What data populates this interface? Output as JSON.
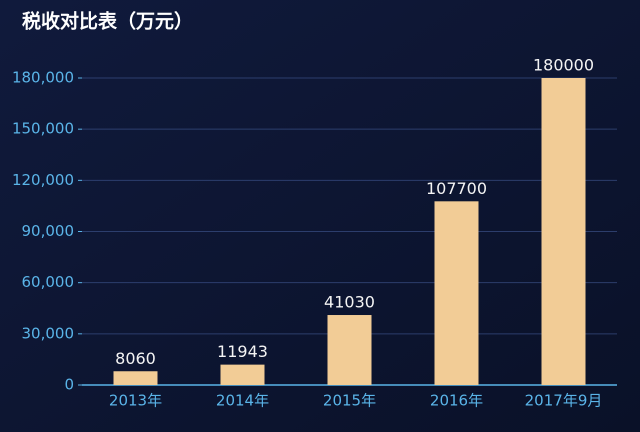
{
  "chart_data": {
    "type": "bar",
    "title": "税收对比表（万元）",
    "categories": [
      "2013年",
      "2014年",
      "2015年",
      "2016年",
      "2017年9月"
    ],
    "values": [
      8060,
      11943,
      41030,
      107700,
      180000
    ],
    "color": "#f2cc96",
    "ylim": [
      0,
      180000
    ],
    "yticks": [
      0,
      {
        "value": 30000,
        "label": "30,000"
      },
      {
        "value": 60000,
        "label": "60,000"
      },
      {
        "value": 90000,
        "label": "90,000"
      },
      {
        "value": 120000,
        "label": "120,000"
      },
      {
        "value": 150000,
        "label": "150,000"
      },
      {
        "value": 180000,
        "label": "180,000"
      }
    ],
    "grid": true
  }
}
